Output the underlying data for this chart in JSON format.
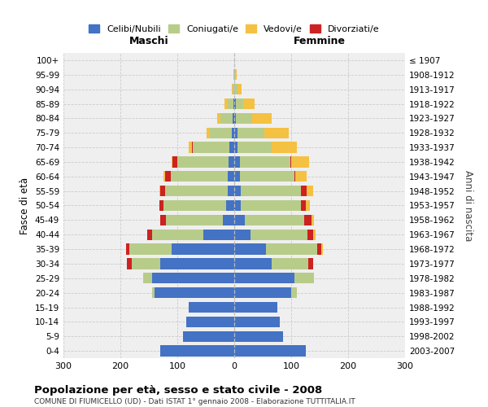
{
  "age_groups": [
    "0-4",
    "5-9",
    "10-14",
    "15-19",
    "20-24",
    "25-29",
    "30-34",
    "35-39",
    "40-44",
    "45-49",
    "50-54",
    "55-59",
    "60-64",
    "65-69",
    "70-74",
    "75-79",
    "80-84",
    "85-89",
    "90-94",
    "95-99",
    "100+"
  ],
  "birth_years": [
    "2003-2007",
    "1998-2002",
    "1993-1997",
    "1988-1992",
    "1983-1987",
    "1978-1982",
    "1973-1977",
    "1968-1972",
    "1963-1967",
    "1958-1962",
    "1953-1957",
    "1948-1952",
    "1943-1947",
    "1938-1942",
    "1933-1937",
    "1928-1932",
    "1923-1927",
    "1918-1922",
    "1913-1917",
    "1908-1912",
    "≤ 1907"
  ],
  "males": {
    "celibi": [
      130,
      90,
      85,
      80,
      140,
      145,
      130,
      110,
      55,
      20,
      14,
      12,
      12,
      10,
      8,
      5,
      3,
      2,
      0,
      0,
      0
    ],
    "coniugati": [
      0,
      0,
      0,
      0,
      5,
      15,
      50,
      75,
      90,
      100,
      110,
      110,
      100,
      90,
      65,
      38,
      22,
      10,
      3,
      1,
      0
    ],
    "vedovi": [
      0,
      0,
      0,
      0,
      0,
      0,
      0,
      0,
      0,
      0,
      0,
      2,
      2,
      2,
      5,
      5,
      5,
      5,
      1,
      0,
      0
    ],
    "divorziati": [
      0,
      0,
      0,
      0,
      0,
      0,
      8,
      5,
      8,
      10,
      8,
      8,
      10,
      8,
      2,
      0,
      0,
      0,
      0,
      0,
      0
    ]
  },
  "females": {
    "nubili": [
      125,
      85,
      80,
      75,
      100,
      105,
      65,
      55,
      28,
      18,
      12,
      12,
      10,
      10,
      5,
      5,
      3,
      3,
      0,
      0,
      0
    ],
    "coniugate": [
      0,
      0,
      0,
      0,
      10,
      35,
      65,
      90,
      100,
      105,
      105,
      105,
      95,
      88,
      60,
      48,
      28,
      12,
      5,
      2,
      0
    ],
    "vedove": [
      0,
      0,
      0,
      0,
      0,
      0,
      0,
      2,
      5,
      5,
      8,
      12,
      20,
      32,
      45,
      42,
      35,
      20,
      8,
      2,
      0
    ],
    "divorziate": [
      0,
      0,
      0,
      0,
      0,
      0,
      8,
      8,
      10,
      12,
      8,
      10,
      2,
      2,
      0,
      0,
      0,
      0,
      0,
      0,
      0
    ]
  },
  "colors": {
    "celibi_nubili": "#4472C4",
    "coniugati": "#B8CC8A",
    "vedovi": "#F5C142",
    "divorziati": "#CC2222"
  },
  "title": "Popolazione per età, sesso e stato civile - 2008",
  "subtitle": "COMUNE DI FIUMICELLO (UD) - Dati ISTAT 1° gennaio 2008 - Elaborazione TUTTITALIA.IT",
  "xlabel_left": "Maschi",
  "xlabel_right": "Femmine",
  "ylabel_left": "Fasce di età",
  "ylabel_right": "Anni di nascita",
  "xlim": 300,
  "background_color": "#ffffff",
  "grid_color": "#cccccc"
}
